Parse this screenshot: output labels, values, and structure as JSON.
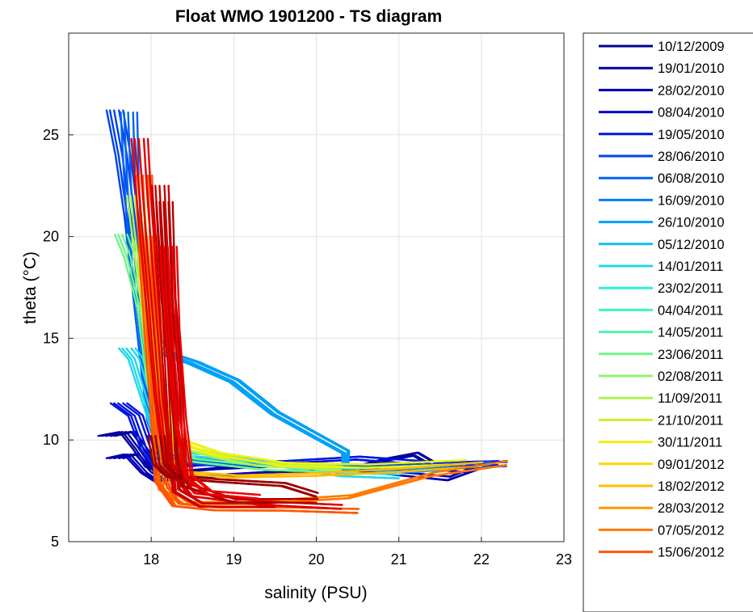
{
  "chart_data": {
    "type": "line",
    "title": "Float WMO 1901200 - TS diagram",
    "xlabel": "salinity (PSU)",
    "ylabel": "theta (°C)",
    "xlim": [
      17,
      23
    ],
    "ylim": [
      5,
      30
    ],
    "xticks": [
      "18",
      "19",
      "20",
      "21",
      "22",
      "23"
    ],
    "yticks": [
      "5",
      "10",
      "15",
      "20",
      "25"
    ],
    "grid": true,
    "legend_position": "right",
    "series": [
      {
        "name": "10/12/2009",
        "color": "#00008f"
      },
      {
        "name": "19/01/2010",
        "color": "#00009f"
      },
      {
        "name": "28/02/2010",
        "color": "#0000b4"
      },
      {
        "name": "08/04/2010",
        "color": "#0000c8"
      },
      {
        "name": "19/05/2010",
        "color": "#0014e0"
      },
      {
        "name": "28/06/2010",
        "color": "#0040f0"
      },
      {
        "name": "06/08/2010",
        "color": "#0062f4"
      },
      {
        "name": "16/09/2010",
        "color": "#0080f8"
      },
      {
        "name": "26/10/2010",
        "color": "#00a0f8"
      },
      {
        "name": "05/12/2010",
        "color": "#10bcf4"
      },
      {
        "name": "14/01/2011",
        "color": "#20d8ec"
      },
      {
        "name": "23/02/2011",
        "color": "#30ecdc"
      },
      {
        "name": "04/04/2011",
        "color": "#40f4c4"
      },
      {
        "name": "14/05/2011",
        "color": "#50f4a8"
      },
      {
        "name": "23/06/2011",
        "color": "#70f488"
      },
      {
        "name": "02/08/2011",
        "color": "#90f46c"
      },
      {
        "name": "11/09/2011",
        "color": "#b0f44c"
      },
      {
        "name": "21/10/2011",
        "color": "#d0f02c"
      },
      {
        "name": "30/11/2011",
        "color": "#f0f010"
      },
      {
        "name": "09/01/2012",
        "color": "#ffd800"
      },
      {
        "name": "18/02/2012",
        "color": "#ffbc00"
      },
      {
        "name": "28/03/2012",
        "color": "#ff9a00"
      },
      {
        "name": "07/05/2012",
        "color": "#ff7800"
      },
      {
        "name": "15/06/2012",
        "color": "#ff5600"
      }
    ],
    "profile_families": [
      {
        "color": "#00009f",
        "points": [
          [
            17.45,
            10.2
          ],
          [
            17.7,
            10.4
          ],
          [
            17.85,
            9.6
          ],
          [
            18.0,
            8.7
          ],
          [
            18.2,
            8.4
          ],
          [
            18.8,
            8.6
          ],
          [
            19.8,
            8.8
          ],
          [
            20.4,
            8.6
          ],
          [
            20.8,
            9.0
          ],
          [
            21.2,
            9.3
          ],
          [
            21.5,
            8.6
          ],
          [
            21.8,
            8.5
          ],
          [
            22.0,
            8.7
          ],
          [
            22.3,
            8.85
          ]
        ]
      },
      {
        "color": "#0000b4",
        "points": [
          [
            17.55,
            9.1
          ],
          [
            17.75,
            9.3
          ],
          [
            17.95,
            8.4
          ],
          [
            18.1,
            8.0
          ],
          [
            18.6,
            8.2
          ],
          [
            19.5,
            8.4
          ],
          [
            20.6,
            8.5
          ],
          [
            21.1,
            8.3
          ],
          [
            21.6,
            8.1
          ],
          [
            22.0,
            8.7
          ]
        ]
      },
      {
        "color": "#0014e0",
        "points": [
          [
            17.6,
            11.8
          ],
          [
            17.8,
            11.2
          ],
          [
            17.95,
            9.5
          ],
          [
            18.1,
            8.6
          ],
          [
            18.6,
            8.8
          ],
          [
            19.6,
            8.9
          ],
          [
            20.5,
            9.1
          ],
          [
            21.5,
            8.8
          ],
          [
            22.2,
            8.85
          ]
        ]
      },
      {
        "color": "#0040f0",
        "points": [
          [
            17.55,
            26.2
          ],
          [
            17.65,
            24.0
          ],
          [
            17.75,
            21.0
          ],
          [
            17.85,
            17.0
          ],
          [
            17.95,
            13.0
          ],
          [
            18.05,
            10.5
          ],
          [
            18.2,
            9.0
          ],
          [
            18.8,
            8.8
          ],
          [
            20.2,
            8.7
          ],
          [
            21.5,
            8.7
          ],
          [
            22.3,
            8.8
          ]
        ]
      },
      {
        "color": "#0062f4",
        "points": [
          [
            17.72,
            26.1
          ],
          [
            17.75,
            23.0
          ],
          [
            17.8,
            19.0
          ],
          [
            17.9,
            15.0
          ],
          [
            18.0,
            11.0
          ],
          [
            18.15,
            9.2
          ],
          [
            19.0,
            8.9
          ],
          [
            20.8,
            8.6
          ],
          [
            22.1,
            8.8
          ]
        ]
      },
      {
        "color": "#00a0f8",
        "points": [
          [
            18.05,
            15.0
          ],
          [
            18.2,
            14.2
          ],
          [
            18.5,
            13.8
          ],
          [
            19.0,
            12.9
          ],
          [
            19.5,
            11.3
          ],
          [
            20.35,
            9.4
          ],
          [
            20.35,
            8.6
          ],
          [
            21.2,
            8.5
          ],
          [
            22.0,
            8.8
          ]
        ]
      },
      {
        "color": "#20d8ec",
        "points": [
          [
            17.7,
            14.5
          ],
          [
            17.8,
            14.0
          ],
          [
            17.95,
            12.0
          ],
          [
            18.1,
            10.0
          ],
          [
            18.4,
            9.3
          ],
          [
            19.2,
            9.0
          ],
          [
            20.3,
            8.3
          ],
          [
            21.0,
            8.2
          ]
        ]
      },
      {
        "color": "#70f488",
        "points": [
          [
            17.65,
            20.1
          ],
          [
            17.75,
            19.0
          ],
          [
            17.9,
            16.5
          ],
          [
            18.0,
            13.0
          ],
          [
            18.15,
            10.2
          ],
          [
            18.5,
            9.0
          ],
          [
            19.4,
            8.6
          ],
          [
            20.5,
            8.5
          ]
        ]
      },
      {
        "color": "#b0f44c",
        "points": [
          [
            17.8,
            22.0
          ],
          [
            17.85,
            20.0
          ],
          [
            17.95,
            16.5
          ],
          [
            18.05,
            12.5
          ],
          [
            18.25,
            9.8
          ],
          [
            18.8,
            9.2
          ],
          [
            19.3,
            8.8
          ],
          [
            20.3,
            8.6
          ]
        ]
      },
      {
        "color": "#f0f010",
        "points": [
          [
            17.95,
            18.5
          ],
          [
            18.0,
            15.0
          ],
          [
            18.1,
            12.0
          ],
          [
            18.3,
            10.0
          ],
          [
            18.8,
            9.3
          ],
          [
            19.6,
            8.8
          ],
          [
            20.6,
            8.7
          ],
          [
            21.8,
            8.9
          ]
        ]
      },
      {
        "color": "#ffbc00",
        "points": [
          [
            18.0,
            16.5
          ],
          [
            18.05,
            13.0
          ],
          [
            18.15,
            10.0
          ],
          [
            18.35,
            8.4
          ],
          [
            19.0,
            8.2
          ],
          [
            20.0,
            8.3
          ],
          [
            21.0,
            8.5
          ],
          [
            22.0,
            8.8
          ]
        ]
      },
      {
        "color": "#ff7800",
        "points": [
          [
            17.95,
            20.0
          ],
          [
            18.0,
            15.0
          ],
          [
            18.1,
            10.0
          ],
          [
            18.15,
            7.6
          ],
          [
            18.4,
            6.9
          ],
          [
            19.2,
            6.9
          ],
          [
            20.4,
            7.2
          ],
          [
            21.4,
            8.3
          ],
          [
            22.3,
            8.85
          ]
        ]
      },
      {
        "color": "#ff5600",
        "points": [
          [
            17.9,
            23.0
          ],
          [
            17.95,
            18.0
          ],
          [
            18.05,
            12.0
          ],
          [
            18.1,
            8.0
          ],
          [
            18.3,
            6.8
          ],
          [
            18.8,
            6.6
          ],
          [
            19.6,
            6.6
          ],
          [
            20.5,
            6.5
          ]
        ]
      },
      {
        "color": "#e00000",
        "points": [
          [
            17.85,
            24.8
          ],
          [
            17.9,
            22.0
          ],
          [
            18.0,
            17.0
          ],
          [
            18.1,
            12.0
          ],
          [
            18.2,
            8.8
          ],
          [
            18.5,
            7.3
          ],
          [
            19.3,
            6.9
          ],
          [
            20.3,
            6.7
          ]
        ]
      },
      {
        "color": "#cc0000",
        "points": [
          [
            18.1,
            22.5
          ],
          [
            18.15,
            19.0
          ],
          [
            18.2,
            14.0
          ],
          [
            18.25,
            9.5
          ],
          [
            18.3,
            7.5
          ],
          [
            18.6,
            6.8
          ],
          [
            19.5,
            6.8
          ]
        ]
      },
      {
        "color": "#b00000",
        "points": [
          [
            18.15,
            21.7
          ],
          [
            18.2,
            17.0
          ],
          [
            18.3,
            12.5
          ],
          [
            18.35,
            9.5
          ],
          [
            18.4,
            7.8
          ],
          [
            19.0,
            7.0
          ],
          [
            20.0,
            7.0
          ]
        ]
      },
      {
        "color": "#990000",
        "points": [
          [
            18.05,
            10.2
          ],
          [
            18.1,
            8.8
          ],
          [
            18.25,
            8.2
          ],
          [
            18.8,
            8.0
          ],
          [
            19.6,
            7.8
          ],
          [
            20.0,
            7.3
          ]
        ]
      },
      {
        "color": "#ee0000",
        "points": [
          [
            18.2,
            19.5
          ],
          [
            18.25,
            15.5
          ],
          [
            18.35,
            11.0
          ],
          [
            18.45,
            8.2
          ],
          [
            18.7,
            7.4
          ],
          [
            19.3,
            7.2
          ]
        ]
      }
    ]
  }
}
